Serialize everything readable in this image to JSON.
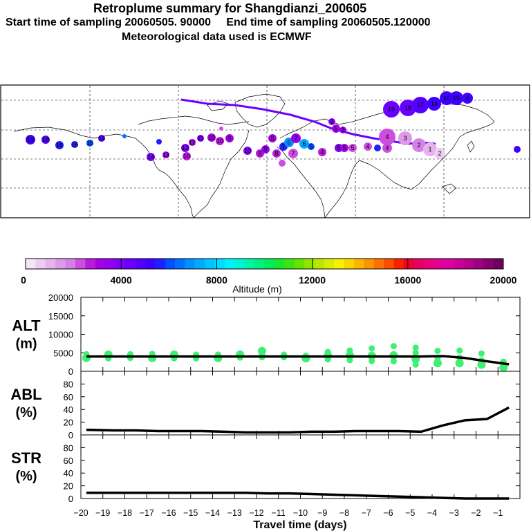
{
  "header": {
    "title": "Retroplume summary for Shangdianzi_200605",
    "subtitle_start": "Start time of sampling 20060505. 90000",
    "subtitle_end": "End time of sampling 20060505.120000",
    "subtitle_met": "Meteorological data used is ECMWF"
  },
  "colorbar": {
    "label": "Altitude (m)",
    "tick_labels": [
      "0",
      "4000",
      "8000",
      "12000",
      "16000",
      "20000"
    ],
    "colors": [
      "#f7e6f7",
      "#efccf2",
      "#e6b3ee",
      "#dd99ea",
      "#d580e6",
      "#cc4de0",
      "#b81ade",
      "#a600e6",
      "#9400f0",
      "#8000f8",
      "#6a00ff",
      "#5500ff",
      "#3f00ff",
      "#1f1fff",
      "#0050ff",
      "#0070ff",
      "#0090ff",
      "#00aaff",
      "#00c4ff",
      "#00dcff",
      "#00f0ff",
      "#00f4d4",
      "#00f4a8",
      "#00f080",
      "#00ec58",
      "#16e830",
      "#3ce414",
      "#66e400",
      "#90e400",
      "#b8e800",
      "#dcec00",
      "#f8f000",
      "#fcd400",
      "#fcb400",
      "#fc9400",
      "#fc7000",
      "#fc4c00",
      "#f82000",
      "#f00030",
      "#e80060",
      "#e8007c",
      "#e40094",
      "#dc00a4",
      "#cc0098",
      "#b8008c",
      "#a00080",
      "#880070",
      "#700060"
    ]
  },
  "map": {
    "description_points": "Plume centroid markers labelled by days before sampling",
    "day_labels": [
      "1",
      "2",
      "3",
      "4",
      "5",
      "6",
      "7",
      "8",
      "9",
      "10",
      "11",
      "12",
      "13",
      "14",
      "15",
      "16",
      "17",
      "18",
      "19",
      "20"
    ]
  },
  "chart_data": [
    {
      "type": "line",
      "panel": "ALT",
      "ylabel": "ALT\n(m)",
      "ylabel_line1": "ALT",
      "ylabel_line2": "(m)",
      "ylim": [
        0,
        20000
      ],
      "yticks": [
        0,
        5000,
        10000,
        15000,
        20000
      ],
      "ytick_labels": [
        "0",
        "5000",
        "10000",
        "15000",
        "20000"
      ],
      "x": [
        -19.75,
        -18.5,
        -17.5,
        -16.5,
        -15.5,
        -14.5,
        -13.5,
        -12.5,
        -11.5,
        -10.5,
        -9.5,
        -8.5,
        -7.5,
        -6.5,
        -5.5,
        -4.5,
        -3.5,
        -2.5,
        -1.5,
        -0.5
      ],
      "values": [
        4000,
        4000,
        4000,
        4000,
        4000,
        4000,
        4000,
        4000,
        4000,
        4000,
        4000,
        4000,
        4000,
        4000,
        4000,
        4000,
        4100,
        3600,
        2700,
        1900
      ],
      "scatter_color": "#3cf070",
      "scatter": [
        {
          "x": -19.75,
          "y": 3600
        },
        {
          "x": -19.75,
          "y": 4600
        },
        {
          "x": -18.75,
          "y": 3500
        },
        {
          "x": -18.75,
          "y": 4500
        },
        {
          "x": -17.75,
          "y": 3600
        },
        {
          "x": -17.75,
          "y": 4600
        },
        {
          "x": -16.75,
          "y": 3600
        },
        {
          "x": -16.75,
          "y": 4700
        },
        {
          "x": -15.75,
          "y": 3500
        },
        {
          "x": -15.75,
          "y": 4500
        },
        {
          "x": -14.75,
          "y": 3500
        },
        {
          "x": -14.75,
          "y": 4500
        },
        {
          "x": -13.75,
          "y": 3600
        },
        {
          "x": -13.75,
          "y": 4500
        },
        {
          "x": -12.75,
          "y": 3700
        },
        {
          "x": -12.75,
          "y": 4500
        },
        {
          "x": -11.75,
          "y": 3800
        },
        {
          "x": -11.75,
          "y": 4600
        },
        {
          "x": -11.75,
          "y": 5500
        },
        {
          "x": -10.75,
          "y": 3800
        },
        {
          "x": -10.75,
          "y": 4500
        },
        {
          "x": -9.75,
          "y": 3500
        },
        {
          "x": -9.75,
          "y": 4200
        },
        {
          "x": -8.75,
          "y": 3200
        },
        {
          "x": -8.75,
          "y": 4200
        },
        {
          "x": -8.75,
          "y": 5200
        },
        {
          "x": -7.75,
          "y": 3000
        },
        {
          "x": -7.75,
          "y": 4300
        },
        {
          "x": -7.75,
          "y": 5600
        },
        {
          "x": -6.75,
          "y": 2800
        },
        {
          "x": -6.75,
          "y": 4200
        },
        {
          "x": -6.75,
          "y": 6200
        },
        {
          "x": -5.75,
          "y": 2700
        },
        {
          "x": -5.75,
          "y": 4300
        },
        {
          "x": -5.75,
          "y": 6800
        },
        {
          "x": -4.75,
          "y": 1800
        },
        {
          "x": -4.75,
          "y": 3300
        },
        {
          "x": -4.75,
          "y": 5000
        },
        {
          "x": -4.75,
          "y": 6400
        },
        {
          "x": -3.75,
          "y": 2200
        },
        {
          "x": -3.75,
          "y": 3600
        },
        {
          "x": -3.75,
          "y": 5500
        },
        {
          "x": -2.75,
          "y": 2200
        },
        {
          "x": -2.75,
          "y": 3700
        },
        {
          "x": -2.75,
          "y": 5600
        },
        {
          "x": -1.75,
          "y": 1800
        },
        {
          "x": -1.75,
          "y": 3000
        },
        {
          "x": -1.75,
          "y": 4800
        },
        {
          "x": -0.75,
          "y": 1000
        },
        {
          "x": -0.75,
          "y": 1700
        },
        {
          "x": -0.75,
          "y": 2600
        }
      ]
    },
    {
      "type": "line",
      "panel": "ABL",
      "ylabel_line1": "ABL",
      "ylabel_line2": "(%)",
      "ylim": [
        0,
        100
      ],
      "yticks": [
        0,
        20,
        40,
        60,
        80
      ],
      "ytick_labels": [
        "0",
        "20",
        "40",
        "60",
        "80"
      ],
      "x": [
        -19.75,
        -18.5,
        -17.5,
        -16.5,
        -15.5,
        -14.5,
        -13.5,
        -12.5,
        -11.5,
        -10.5,
        -9.5,
        -8.5,
        -7.5,
        -6.5,
        -5.5,
        -4.5,
        -3.5,
        -2.5,
        -1.5,
        -0.5
      ],
      "values": [
        8,
        7,
        7,
        6,
        6,
        6,
        5,
        4,
        4,
        4,
        5,
        5,
        6,
        6,
        6,
        5,
        15,
        23,
        25,
        43
      ]
    },
    {
      "type": "line",
      "panel": "STR",
      "ylabel_line1": "STR",
      "ylabel_line2": "(%)",
      "ylim": [
        0,
        100
      ],
      "yticks": [
        0,
        20,
        40,
        60,
        80
      ],
      "ytick_labels": [
        "0",
        "20",
        "40",
        "60",
        "80"
      ],
      "x": [
        -19.75,
        -18.5,
        -17.5,
        -16.5,
        -15.5,
        -14.5,
        -13.5,
        -12.5,
        -11.5,
        -10.5,
        -9.5,
        -8.5,
        -7.5,
        -6.5,
        -5.5,
        -4.5,
        -3.5,
        -2.5,
        -1.5,
        -0.5
      ],
      "values": [
        9,
        9,
        9,
        9,
        9,
        9,
        9,
        9,
        8,
        8,
        7,
        6,
        5,
        4,
        3,
        2,
        1,
        0,
        0,
        0
      ],
      "xlabel": "Travel time (days)",
      "xlim": [
        -20,
        0
      ],
      "xticks": [
        -20,
        -19,
        -18,
        -17,
        -16,
        -15,
        -14,
        -13,
        -12,
        -11,
        -10,
        -9,
        -8,
        -7,
        -6,
        -5,
        -4,
        -3,
        -2,
        -1
      ],
      "xtick_labels": [
        "−20",
        "−19",
        "−18",
        "−17",
        "−16",
        "−15",
        "−14",
        "−13",
        "−12",
        "−11",
        "−10",
        "−9",
        "−8",
        "−7",
        "−6",
        "−5",
        "−4",
        "−3",
        "−2",
        "−1"
      ]
    }
  ]
}
